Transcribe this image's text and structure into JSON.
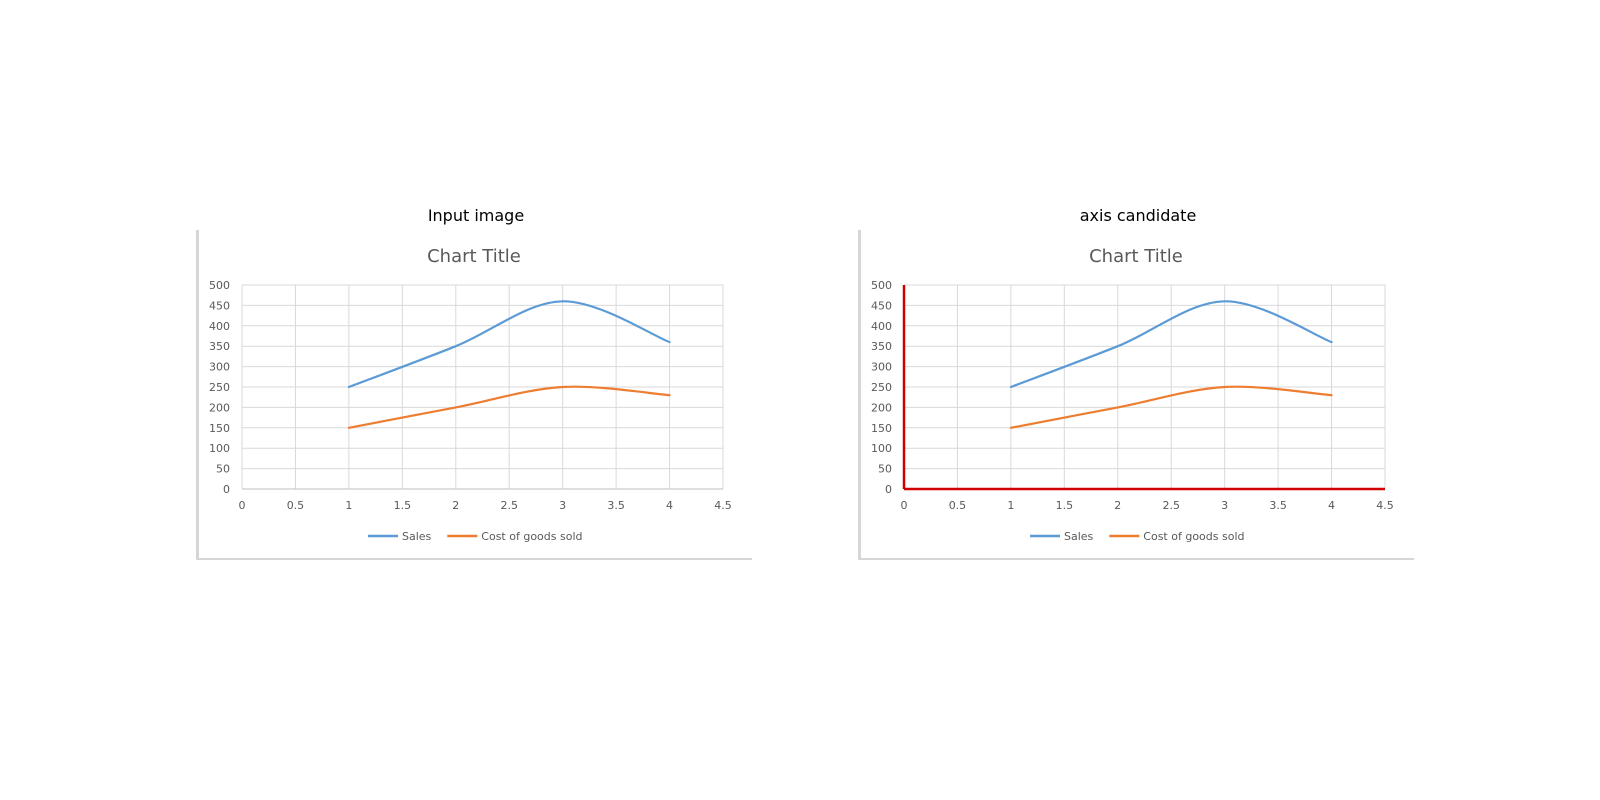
{
  "panels": [
    {
      "caption": "Input image",
      "chart_data": {
        "type": "line",
        "title": "Chart Title",
        "xlabel": "",
        "ylabel": "",
        "xlim": [
          0,
          4.5
        ],
        "ylim": [
          0,
          500
        ],
        "x_ticks": [
          "0",
          "0.5",
          "1",
          "1.5",
          "2",
          "2.5",
          "3",
          "3.5",
          "4",
          "4.5"
        ],
        "y_ticks": [
          "0",
          "50",
          "100",
          "150",
          "200",
          "250",
          "300",
          "350",
          "400",
          "450",
          "500"
        ],
        "grid": true,
        "legend_position": "bottom",
        "series": [
          {
            "name": "Sales",
            "color": "#5b9bd5",
            "x": [
              1,
              2,
              3,
              4
            ],
            "y": [
              250,
              350,
              460,
              360
            ]
          },
          {
            "name": "Cost of goods sold",
            "color": "#ed7d31",
            "x": [
              1,
              2,
              3,
              4
            ],
            "y": [
              150,
              200,
              250,
              230
            ]
          }
        ],
        "axis_overlay": false
      }
    },
    {
      "caption": "axis candidate",
      "chart_data": {
        "type": "line",
        "title": "Chart Title",
        "xlabel": "",
        "ylabel": "",
        "xlim": [
          0,
          4.5
        ],
        "ylim": [
          0,
          500
        ],
        "x_ticks": [
          "0",
          "0.5",
          "1",
          "1.5",
          "2",
          "2.5",
          "3",
          "3.5",
          "4",
          "4.5"
        ],
        "y_ticks": [
          "0",
          "50",
          "100",
          "150",
          "200",
          "250",
          "300",
          "350",
          "400",
          "450",
          "500"
        ],
        "grid": true,
        "legend_position": "bottom",
        "series": [
          {
            "name": "Sales",
            "color": "#5b9bd5",
            "x": [
              1,
              2,
              3,
              4
            ],
            "y": [
              250,
              350,
              460,
              360
            ]
          },
          {
            "name": "Cost of goods sold",
            "color": "#ed7d31",
            "x": [
              1,
              2,
              3,
              4
            ],
            "y": [
              150,
              200,
              250,
              230
            ]
          }
        ],
        "axis_overlay": true,
        "axis_overlay_color": "#d00000"
      }
    }
  ]
}
